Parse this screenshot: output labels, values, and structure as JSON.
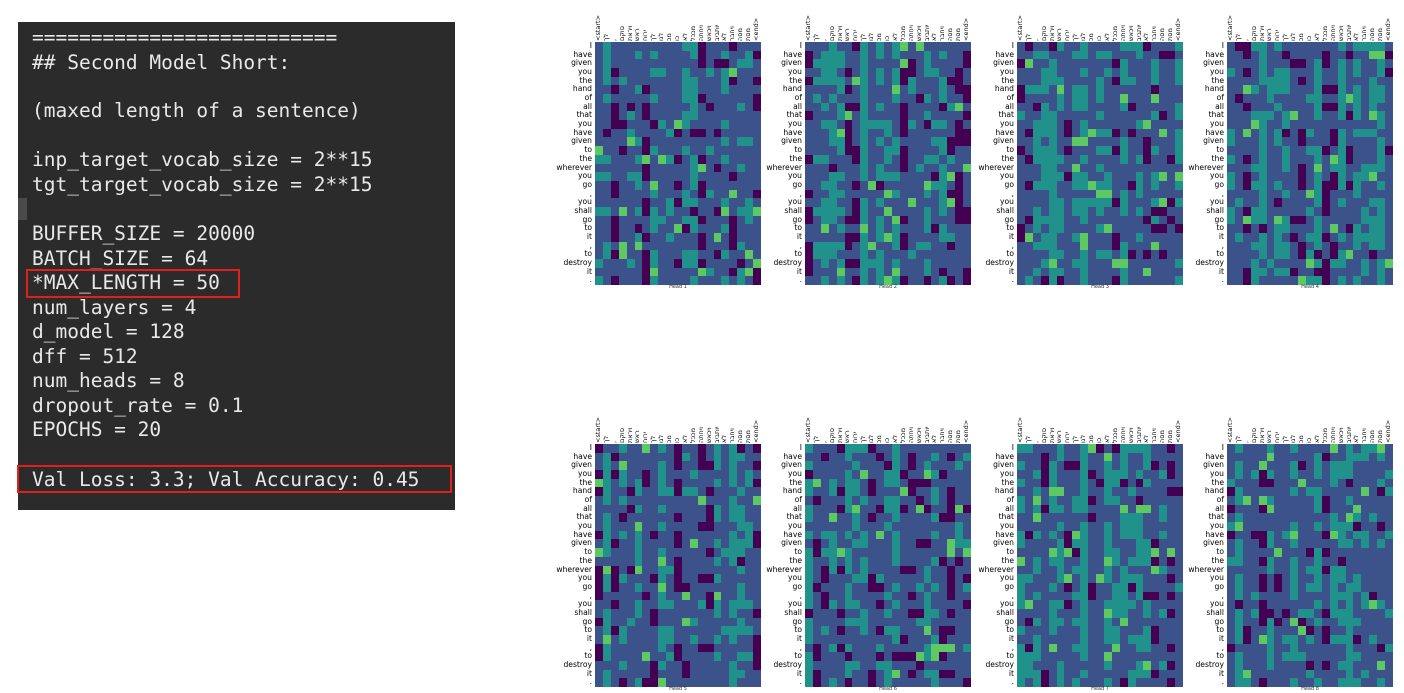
{
  "terminal": {
    "lines": [
      "==========================",
      "## Second Model Short:",
      "",
      "(maxed length of a sentence)",
      "",
      "inp_target_vocab_size = 2**15",
      "tgt_target_vocab_size = 2**15",
      "",
      "BUFFER_SIZE = 20000",
      "BATCH_SIZE = 64",
      "*MAX_LENGTH = 50",
      "num_layers = 4",
      "d_model = 128",
      "dff = 512",
      "num_heads = 8",
      "dropout_rate = 0.1",
      "EPOCHS = 20",
      "",
      "Val Loss: 3.3; Val Accuracy: 0.45"
    ],
    "highlight_color": "#e0201a"
  },
  "attention": {
    "x_tokens": [
      "<start>",
      "לך",
      ",",
      "סוקם",
      "ויראת",
      "ראש",
      "ירוח",
      "לך",
      "לגו",
      "מכ",
      "כו",
      "לא",
      "מככל",
      "ויחתה",
      "ויכאש",
      "יותביב",
      "לא",
      "ויחבר",
      "מסה",
      "מסת",
      "<end>"
    ],
    "y_tokens": [
      "I",
      "have",
      "given",
      "you",
      "the",
      "hand",
      "of",
      "all",
      "that",
      "you",
      "have",
      "given",
      "to",
      "the",
      "wherever",
      "you",
      "go",
      ",",
      "you",
      "shall",
      "go",
      "to",
      "it",
      ",",
      "to",
      "destroy",
      "it",
      "."
    ],
    "heads": [
      "Head 1",
      "Head 2",
      "Head 3",
      "Head 4",
      "Head 5",
      "Head 6",
      "Head 7",
      "Head 8"
    ],
    "colormap": [
      "#440154",
      "#3b528b",
      "#21918c",
      "#5ec962",
      "#fde725"
    ]
  }
}
